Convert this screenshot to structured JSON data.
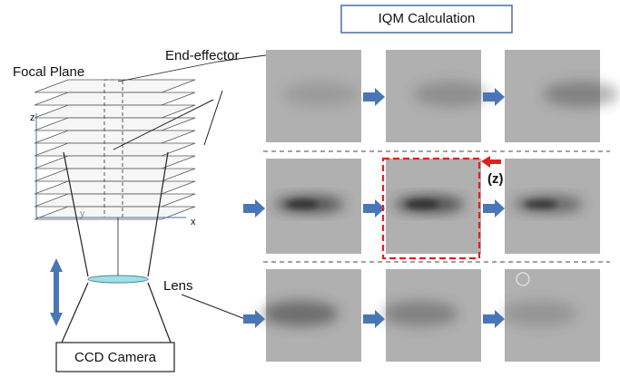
{
  "title": "IQM Calculation",
  "labels": {
    "end_effector": "End-effector",
    "focal_plane": "Focal Plane",
    "lens": "Lens",
    "camera": "CCD Camera",
    "z_shift": "(z)",
    "axis_z": "z",
    "axis_y": "y",
    "axis_x": "x"
  }
}
